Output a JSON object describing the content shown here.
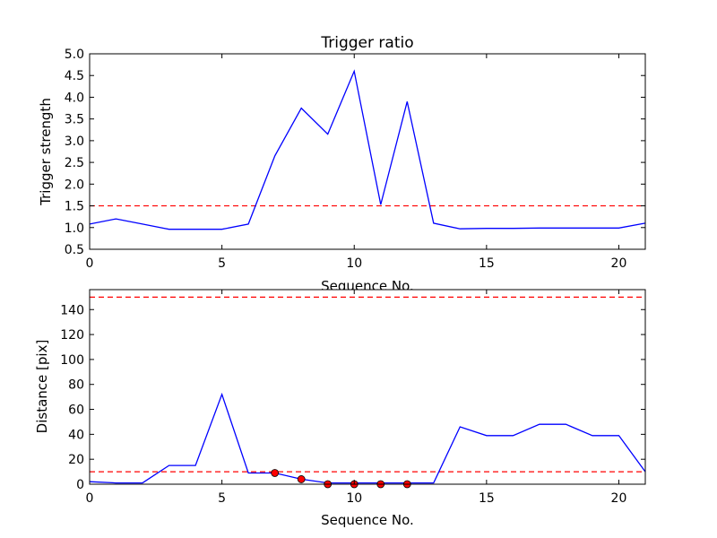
{
  "chart_data": [
    {
      "type": "line",
      "title": "Trigger ratio",
      "xlabel": "Sequence No.",
      "ylabel": "Trigger strength",
      "xlim": [
        0,
        21
      ],
      "ylim": [
        0.5,
        5.0
      ],
      "xticks": [
        0,
        5,
        10,
        15,
        20
      ],
      "xtick_labels": [
        "0",
        "5",
        "10",
        "15",
        "20"
      ],
      "yticks": [
        0.5,
        1.0,
        1.5,
        2.0,
        2.5,
        3.0,
        3.5,
        4.0,
        4.5,
        5.0
      ],
      "ytick_labels": [
        "0.5",
        "1.0",
        "1.5",
        "2.0",
        "2.5",
        "3.0",
        "3.5",
        "4.0",
        "4.5",
        "5.0"
      ],
      "grid": false,
      "series": [
        {
          "color": "#0000ff",
          "x": [
            0,
            1,
            2,
            3,
            4,
            5,
            6,
            7,
            8,
            9,
            10,
            11,
            12,
            13,
            14,
            15,
            16,
            17,
            18,
            19,
            20,
            21
          ],
          "values": [
            1.08,
            1.2,
            1.08,
            0.96,
            0.96,
            0.96,
            1.08,
            2.65,
            3.75,
            3.15,
            4.6,
            1.53,
            3.9,
            1.1,
            0.97,
            0.98,
            0.98,
            0.99,
            0.99,
            0.99,
            0.99,
            1.1
          ]
        }
      ],
      "threshold_lines": [
        {
          "y": 1.5,
          "color": "#ff0000",
          "style": "dashed"
        }
      ]
    },
    {
      "type": "line",
      "title": "",
      "xlabel": "Sequence No.",
      "ylabel": "Distance [pix]",
      "xlim": [
        0,
        21
      ],
      "ylim": [
        0,
        156
      ],
      "xticks": [
        0,
        5,
        10,
        15,
        20
      ],
      "xtick_labels": [
        "0",
        "5",
        "10",
        "15",
        "20"
      ],
      "yticks": [
        0,
        20,
        40,
        60,
        80,
        100,
        120,
        140
      ],
      "ytick_labels": [
        "0",
        "20",
        "40",
        "60",
        "80",
        "100",
        "120",
        "140"
      ],
      "grid": false,
      "series": [
        {
          "color": "#0000ff",
          "x": [
            0,
            1,
            2,
            3,
            4,
            5,
            6,
            7,
            8,
            9,
            10,
            11,
            12,
            13,
            14,
            15,
            16,
            17,
            18,
            19,
            20,
            21
          ],
          "values": [
            2,
            1,
            1,
            15,
            15,
            72,
            9,
            9,
            4,
            1,
            1,
            1,
            1,
            1,
            46,
            39,
            39,
            48,
            48,
            39,
            39,
            10
          ]
        }
      ],
      "markers": {
        "color": "#ff0000",
        "x": [
          7,
          8,
          9,
          10,
          11,
          12
        ],
        "values": [
          9,
          4,
          0,
          0,
          0,
          0
        ]
      },
      "threshold_lines": [
        {
          "y": 150,
          "color": "#ff0000",
          "style": "dashed"
        },
        {
          "y": 10,
          "color": "#ff0000",
          "style": "dashed"
        }
      ]
    }
  ]
}
